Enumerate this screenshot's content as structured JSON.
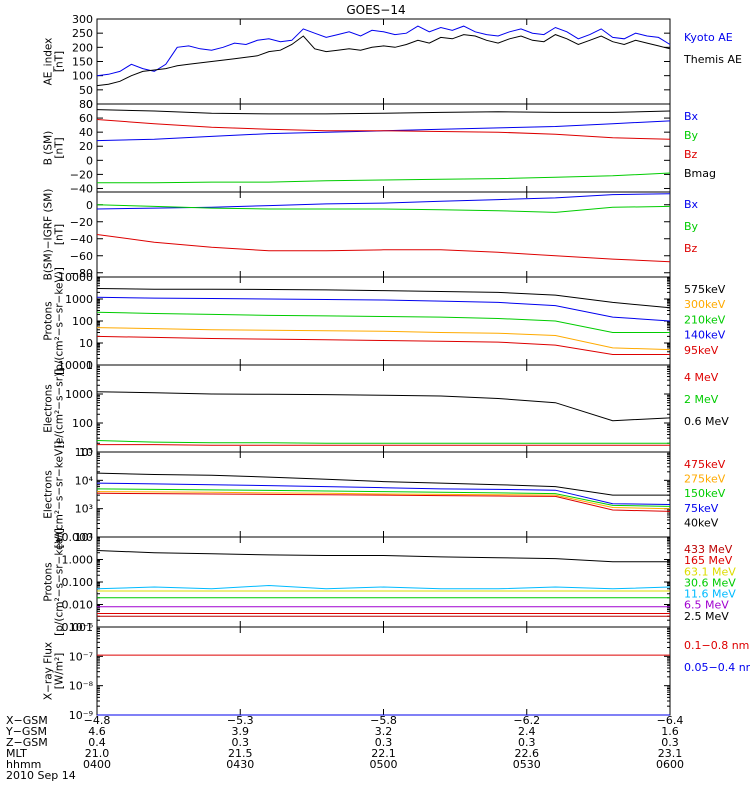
{
  "title": "GOES−14",
  "colors": {
    "black": "#000000",
    "blue": "#0000ee",
    "green": "#00cc00",
    "red": "#dd0000",
    "orange": "#ffaa00",
    "cyan": "#00bbff",
    "yellow": "#dddd00",
    "darkred": "#bb0000",
    "purple": "#a000d0"
  },
  "chart_data": [
    {
      "type": "line",
      "id": "ae",
      "ylabel": "AE_index\n[nT]",
      "yscale": "linear",
      "ylim": [
        0,
        300
      ],
      "yticks": [
        0,
        50,
        100,
        150,
        200,
        250,
        300
      ],
      "ytick_labels": [
        "0",
        "50",
        "100",
        "150",
        "200",
        "250",
        "300"
      ],
      "x": [
        0,
        2,
        4,
        6,
        8,
        10,
        12,
        13,
        14,
        16,
        18,
        20,
        22,
        24,
        26,
        28,
        30,
        32,
        34,
        36,
        38,
        40,
        42,
        44,
        46,
        48,
        50,
        52,
        54,
        56,
        58,
        60,
        62,
        64,
        66,
        68,
        70,
        72,
        74,
        76,
        78,
        80,
        82,
        84,
        86,
        88,
        90,
        92,
        94,
        96,
        98,
        100
      ],
      "series": [
        {
          "name": "Kyoto AE",
          "color": "#0000ee",
          "values": [
            100,
            105,
            115,
            140,
            125,
            115,
            140,
            170,
            200,
            205,
            195,
            190,
            200,
            215,
            210,
            225,
            230,
            220,
            225,
            265,
            250,
            235,
            245,
            255,
            240,
            260,
            255,
            245,
            250,
            275,
            255,
            270,
            260,
            275,
            255,
            245,
            240,
            255,
            265,
            250,
            245,
            270,
            255,
            230,
            245,
            265,
            235,
            230,
            250,
            240,
            235,
            210
          ]
        },
        {
          "name": "Themis AE",
          "color": "#000000",
          "values": [
            65,
            70,
            80,
            100,
            115,
            120,
            125,
            130,
            135,
            140,
            145,
            150,
            155,
            160,
            165,
            170,
            185,
            190,
            210,
            240,
            195,
            185,
            190,
            195,
            190,
            200,
            205,
            200,
            210,
            225,
            215,
            235,
            230,
            245,
            240,
            225,
            215,
            230,
            240,
            225,
            220,
            245,
            230,
            210,
            225,
            240,
            220,
            210,
            225,
            215,
            205,
            195
          ]
        }
      ],
      "legend": [
        "Kyoto AE",
        "Themis AE"
      ]
    },
    {
      "type": "line",
      "id": "bsm",
      "ylabel": "B (SM)\n[nT]",
      "yscale": "linear",
      "ylim": [
        -45,
        80
      ],
      "yticks": [
        -40,
        -20,
        0,
        20,
        40,
        60,
        80
      ],
      "ytick_labels": [
        "−40",
        "−20",
        "0",
        "20",
        "40",
        "60",
        "80"
      ],
      "x": [
        0,
        10,
        20,
        30,
        40,
        50,
        60,
        70,
        80,
        90,
        100
      ],
      "series": [
        {
          "name": "Bx",
          "color": "#0000ee",
          "values": [
            28,
            30,
            34,
            38,
            40,
            42,
            44,
            46,
            48,
            52,
            56
          ]
        },
        {
          "name": "By",
          "color": "#00cc00",
          "values": [
            -32,
            -32,
            -31,
            -31,
            -29,
            -28,
            -27,
            -26,
            -24,
            -22,
            -18
          ]
        },
        {
          "name": "Bz",
          "color": "#dd0000",
          "values": [
            58,
            52,
            47,
            44,
            42,
            42,
            41,
            40,
            37,
            32,
            30
          ]
        },
        {
          "name": "Bmag",
          "color": "#000000",
          "values": [
            72,
            70,
            67,
            66,
            66,
            67,
            68,
            69,
            68,
            68,
            70
          ]
        }
      ],
      "legend": [
        "Bx",
        "By",
        "Bz",
        "Bmag"
      ]
    },
    {
      "type": "line",
      "id": "bigrf",
      "ylabel": "B(SM)−IGRF (SM)\n[nT]",
      "yscale": "linear",
      "ylim": [
        -85,
        15
      ],
      "yticks": [
        -80,
        -60,
        -40,
        -20,
        0
      ],
      "ytick_labels": [
        "−80",
        "−60",
        "−40",
        "−20",
        "0"
      ],
      "x": [
        0,
        10,
        20,
        30,
        40,
        50,
        60,
        70,
        80,
        90,
        100
      ],
      "series": [
        {
          "name": "Bx",
          "color": "#0000ee",
          "values": [
            -5,
            -4,
            -3,
            -1,
            1,
            2,
            4,
            6,
            8,
            12,
            13
          ]
        },
        {
          "name": "By",
          "color": "#00cc00",
          "values": [
            0,
            -2,
            -4,
            -5,
            -5,
            -5,
            -6,
            -7,
            -9,
            -3,
            -2
          ]
        },
        {
          "name": "Bz",
          "color": "#dd0000",
          "values": [
            -35,
            -44,
            -50,
            -54,
            -54,
            -53,
            -53,
            -56,
            -60,
            -64,
            -67
          ]
        }
      ],
      "legend": [
        "Bx",
        "By",
        "Bz"
      ]
    },
    {
      "type": "line",
      "id": "protons1",
      "ylabel": "Protons\n[p/(cm²−s−sr−keV)]",
      "yscale": "log",
      "ylim": [
        1,
        10000
      ],
      "yticks": [
        1,
        10,
        100,
        1000,
        10000
      ],
      "ytick_labels": [
        "1",
        "10",
        "100",
        "1000",
        "10000"
      ],
      "x": [
        0,
        10,
        20,
        30,
        40,
        50,
        60,
        70,
        80,
        90,
        100
      ],
      "series": [
        {
          "name": "575keV",
          "color": "#000000",
          "values": [
            3000,
            2800,
            2800,
            2700,
            2600,
            2400,
            2200,
            2000,
            1500,
            700,
            400
          ]
        },
        {
          "name": "300keV",
          "color": "#ffaa00",
          "values": [
            50,
            45,
            40,
            38,
            36,
            34,
            30,
            28,
            22,
            6,
            5
          ]
        },
        {
          "name": "210keV",
          "color": "#00cc00",
          "values": [
            250,
            220,
            200,
            180,
            170,
            160,
            150,
            130,
            100,
            30,
            30
          ]
        },
        {
          "name": "140keV",
          "color": "#0000ee",
          "values": [
            1200,
            1100,
            1050,
            1000,
            950,
            900,
            800,
            700,
            500,
            150,
            100
          ]
        },
        {
          "name": "95keV",
          "color": "#dd0000",
          "values": [
            20,
            18,
            16,
            15,
            14,
            13,
            12,
            11,
            8,
            3,
            3
          ]
        }
      ],
      "legend": [
        "575keV",
        "300keV",
        "210keV",
        "140keV",
        "95keV"
      ]
    },
    {
      "type": "line",
      "id": "electrons1",
      "ylabel": "Electrons\n[e/(cm²−s−sr)]",
      "yscale": "log",
      "ylim": [
        10,
        10000
      ],
      "yticks": [
        10,
        100,
        1000,
        10000
      ],
      "ytick_labels": [
        "10",
        "100",
        "1000",
        "10000"
      ],
      "x": [
        0,
        10,
        20,
        30,
        40,
        50,
        60,
        70,
        80,
        90,
        100
      ],
      "series": [
        {
          "name": "4 MeV",
          "color": "#dd0000",
          "values": [
            18,
            18,
            17,
            17,
            17,
            17,
            17,
            17,
            17,
            17,
            17
          ]
        },
        {
          "name": "2 MeV",
          "color": "#00cc00",
          "values": [
            25,
            22,
            21,
            21,
            20,
            20,
            20,
            20,
            20,
            20,
            20
          ]
        },
        {
          "name": "0.6 MeV",
          "color": "#000000",
          "values": [
            1200,
            1100,
            1000,
            980,
            950,
            900,
            850,
            700,
            500,
            120,
            150
          ]
        }
      ],
      "legend": [
        "4 MeV",
        "2 MeV",
        "0.6 MeV"
      ]
    },
    {
      "type": "line",
      "id": "electrons2",
      "ylabel": "Electrons\n[e/(cm²−s−sr−keV)]",
      "yscale": "log",
      "ylim": [
        100,
        100000
      ],
      "yticks": [
        100,
        1000,
        10000,
        100000
      ],
      "ytick_labels": [
        "10²",
        "10³",
        "10⁴",
        "10⁵"
      ],
      "x": [
        0,
        10,
        20,
        30,
        40,
        50,
        60,
        70,
        80,
        90,
        100
      ],
      "series": [
        {
          "name": "475keV",
          "color": "#dd0000",
          "values": [
            3500,
            3400,
            3300,
            3200,
            3100,
            3000,
            2900,
            2800,
            2700,
            900,
            800
          ]
        },
        {
          "name": "275keV",
          "color": "#ffaa00",
          "values": [
            4000,
            3900,
            3800,
            3600,
            3500,
            3300,
            3200,
            3100,
            3000,
            1100,
            1000
          ]
        },
        {
          "name": "150keV",
          "color": "#00cc00",
          "values": [
            5000,
            4800,
            4600,
            4400,
            4200,
            4000,
            3800,
            3600,
            3400,
            1300,
            1200
          ]
        },
        {
          "name": "75keV",
          "color": "#0000ee",
          "values": [
            8000,
            7500,
            7000,
            6500,
            6000,
            5500,
            5000,
            4800,
            4500,
            1500,
            1400
          ]
        },
        {
          "name": "40keV",
          "color": "#000000",
          "values": [
            18000,
            16000,
            15000,
            13000,
            11000,
            9000,
            8000,
            7000,
            6000,
            3000,
            3000
          ]
        }
      ],
      "legend": [
        "475keV",
        "275keV",
        "150keV",
        "75keV",
        "40keV"
      ]
    },
    {
      "type": "line",
      "id": "protons2",
      "ylabel": "Protons\n[p/(cm²−s−sr−keV)]",
      "yscale": "log",
      "ylim": [
        0.001,
        10
      ],
      "yticks": [
        0.001,
        0.01,
        0.1,
        1,
        10
      ],
      "ytick_labels": [
        "0.001",
        "0.010",
        "0.100",
        "1.000",
        "10.000"
      ],
      "x": [
        0,
        10,
        20,
        30,
        40,
        50,
        60,
        70,
        80,
        90,
        100
      ],
      "series": [
        {
          "name": "433 MeV",
          "color": "#bb0000",
          "values": [
            0.003,
            0.003,
            0.003,
            0.003,
            0.003,
            0.003,
            0.003,
            0.003,
            0.003,
            0.003,
            0.003
          ]
        },
        {
          "name": "165 MeV",
          "color": "#dd0000",
          "values": [
            0.004,
            0.004,
            0.004,
            0.004,
            0.004,
            0.004,
            0.004,
            0.004,
            0.004,
            0.004,
            0.004
          ]
        },
        {
          "name": "63.1 MeV",
          "color": "#dddd00",
          "values": [
            0.04,
            0.04,
            0.04,
            0.04,
            0.04,
            0.04,
            0.04,
            0.04,
            0.04,
            0.04,
            0.04
          ]
        },
        {
          "name": "30.6 MeV",
          "color": "#00cc00",
          "values": [
            0.02,
            0.02,
            0.02,
            0.02,
            0.02,
            0.02,
            0.02,
            0.02,
            0.02,
            0.02,
            0.02
          ]
        },
        {
          "name": "11.6 MeV",
          "color": "#00bbff",
          "values": [
            0.05,
            0.06,
            0.05,
            0.07,
            0.05,
            0.06,
            0.05,
            0.05,
            0.06,
            0.05,
            0.06
          ]
        },
        {
          "name": "6.5 MeV",
          "color": "#a000d0",
          "values": [
            0.008,
            0.008,
            0.008,
            0.008,
            0.008,
            0.008,
            0.008,
            0.008,
            0.008,
            0.008,
            0.008
          ]
        },
        {
          "name": "2.5 MeV",
          "color": "#000000",
          "values": [
            2.5,
            2.0,
            1.8,
            1.6,
            1.5,
            1.5,
            1.3,
            1.2,
            1.1,
            0.8,
            0.8
          ]
        }
      ],
      "legend": [
        "433 MeV",
        "165 MeV",
        "63.1 MeV",
        "30.6 MeV",
        "11.6 MeV",
        "6.5 MeV",
        "2.5 MeV"
      ]
    },
    {
      "type": "line",
      "id": "xray",
      "ylabel": "X−ray Flux\n[W/m²]",
      "yscale": "log",
      "ylim": [
        1e-09,
        1e-06
      ],
      "yticks": [
        1e-09,
        1e-08,
        1e-07,
        1e-06
      ],
      "ytick_labels": [
        "10⁻⁹",
        "10⁻⁸",
        "10⁻⁷",
        "10⁻⁶"
      ],
      "x": [
        0,
        10,
        20,
        30,
        40,
        50,
        60,
        70,
        80,
        90,
        100
      ],
      "series": [
        {
          "name": "0.1−0.8 nm",
          "color": "#dd0000",
          "values": [
            1.1e-07,
            1.1e-07,
            1.1e-07,
            1.1e-07,
            1.1e-07,
            1.1e-07,
            1.1e-07,
            1.1e-07,
            1.1e-07,
            1.1e-07,
            1.1e-07
          ]
        },
        {
          "name": "0.05−0.4 nm",
          "color": "#0000ee",
          "values": [
            1e-09,
            1e-09,
            1e-09,
            1e-09,
            1e-09,
            1e-09,
            1e-09,
            1e-09,
            1e-09,
            1e-09,
            1e-09
          ]
        }
      ],
      "legend": [
        "0.1−0.8 nm",
        "0.05−0.4 nm"
      ]
    }
  ],
  "x_axis": {
    "row_labels": [
      "X−GSM",
      "Y−GSM",
      "Z−GSM",
      "MLT",
      "hhmm",
      "2010 Sep 14"
    ],
    "ticks": [
      {
        "x": 0,
        "values": [
          "−4.8",
          "4.6",
          "0.4",
          "21.0",
          "0400"
        ]
      },
      {
        "x": 25,
        "values": [
          "−5.3",
          "3.9",
          "0.3",
          "21.5",
          "0430"
        ]
      },
      {
        "x": 50,
        "values": [
          "−5.8",
          "3.2",
          "0.3",
          "22.1",
          "0500"
        ]
      },
      {
        "x": 75,
        "values": [
          "−6.2",
          "2.4",
          "0.3",
          "22.6",
          "0530"
        ]
      },
      {
        "x": 100,
        "values": [
          "−6.4",
          "1.6",
          "0.3",
          "23.1",
          "0600"
        ]
      }
    ]
  }
}
